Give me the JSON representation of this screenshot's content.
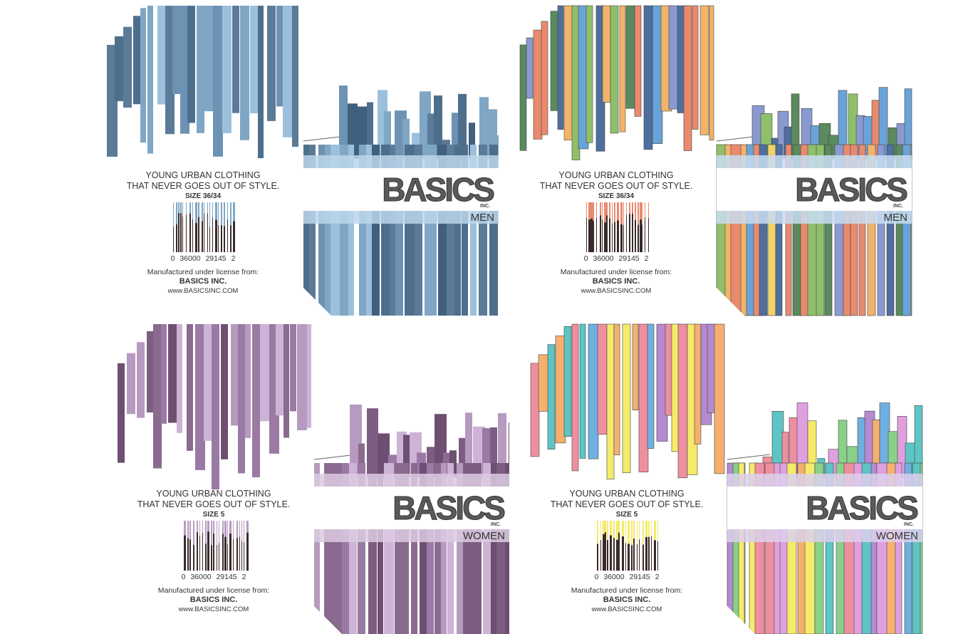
{
  "panels": [
    {
      "tagline": [
        "YOUNG URBAN CLOTHING",
        "THAT NEVER GOES OUT OF STYLE."
      ],
      "size": "SIZE 36/34",
      "barcode_number": "0 36000 29145 2",
      "license": "Manufactured under license from:",
      "company": "BASICS INC.",
      "url": "www.BASICSINC.COM",
      "brand": "BASICS",
      "brand_sub": "INC.",
      "category": "MEN"
    },
    {
      "tagline": [
        "YOUNG URBAN CLOTHING",
        "THAT NEVER GOES OUT OF STYLE."
      ],
      "size": "SIZE 36/34",
      "barcode_number": "0 36000 29145 2",
      "license": "Manufactured under license from:",
      "company": "BASICS INC.",
      "url": "www.BASICSINC.COM",
      "brand": "BASICS",
      "brand_sub": "INC.",
      "category": "MEN"
    },
    {
      "tagline": [
        "YOUNG URBAN CLOTHING",
        "THAT NEVER GOES OUT OF STYLE."
      ],
      "size": "SIZE 5",
      "barcode_number": "0 36000 29145 2",
      "license": "Manufactured under license from:",
      "company": "BASICS INC.",
      "url": "www.BASICSINC.COM",
      "brand": "BASICS",
      "brand_sub": "INC.",
      "category": "WOMEN"
    },
    {
      "tagline": [
        "YOUNG URBAN CLOTHING",
        "THAT NEVER GOES OUT OF STYLE."
      ],
      "size": "SIZE 5",
      "barcode_number": "0 36000 29145 2",
      "license": "Manufactured under license from:",
      "company": "BASICS INC.",
      "url": "www.BASICSINC.COM",
      "brand": "BASICS",
      "brand_sub": "INC.",
      "category": "WOMEN"
    }
  ]
}
